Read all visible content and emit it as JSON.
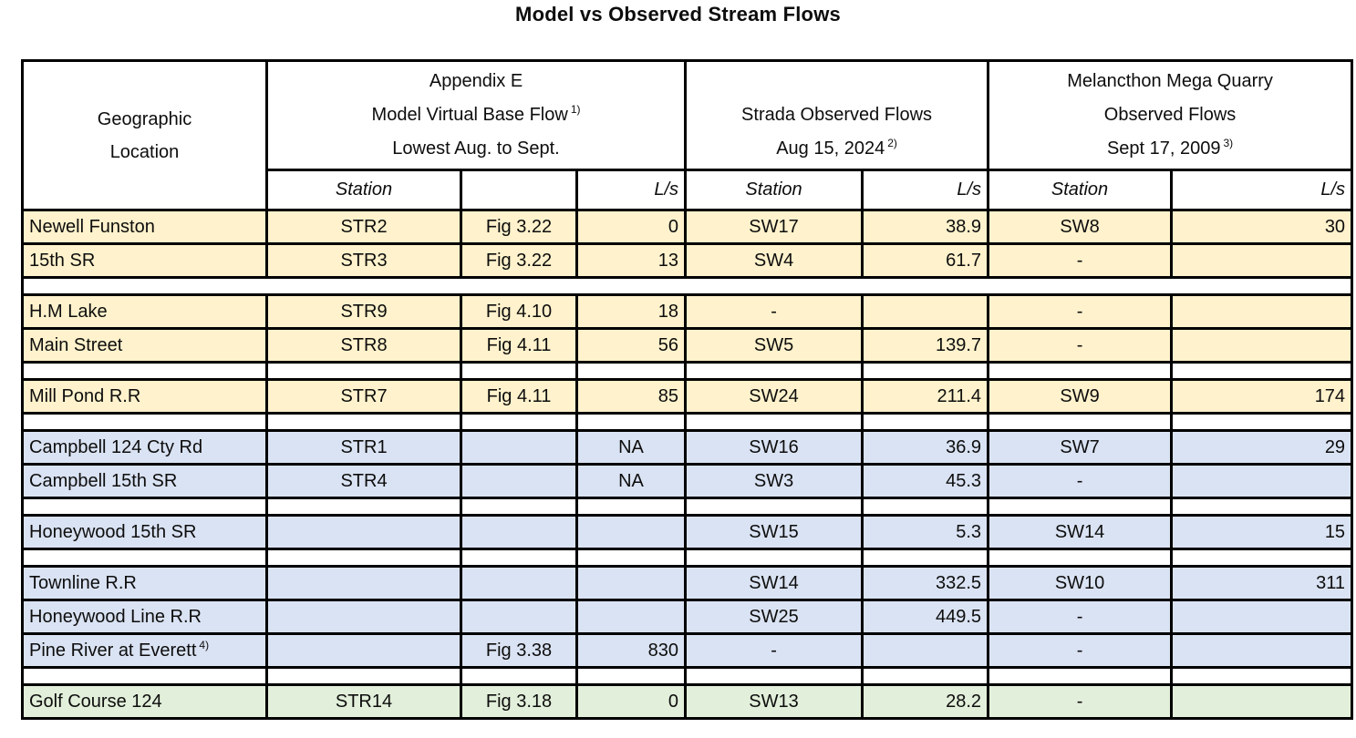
{
  "title": "Model vs Observed Stream Flows",
  "colors": {
    "row_yellow": "#FFF2CC",
    "row_blue": "#DAE3F3",
    "row_green": "#E2EFDA",
    "grid": "#000000"
  },
  "header": {
    "geographic": {
      "line1": "Geographic",
      "line2": "Location"
    },
    "appendix": {
      "line1": "Appendix E",
      "line2": "Model Virtual Base Flow",
      "line2_sup": "1)",
      "line3": "Lowest Aug. to Sept."
    },
    "strada": {
      "line1": "Strada Observed Flows",
      "line2": "Aug 15, 2024",
      "line2_sup": "2)"
    },
    "melancthon": {
      "line1": "Melancthon Mega Quarry",
      "line2": "Observed Flows",
      "line3": "Sept 17, 2009",
      "line3_sup": "3)"
    },
    "station_label": "Station",
    "unit_label": "L/s"
  },
  "rows": [
    {
      "type": "data",
      "color": "yellow",
      "location": "Newell Funston",
      "station1": "STR2",
      "figure": "Fig 3.22",
      "flow1": "0",
      "station2": "SW17",
      "flow2": "38.9",
      "station3": "SW8",
      "flow3": "30"
    },
    {
      "type": "data",
      "color": "yellow",
      "location": "15th SR",
      "station1": "STR3",
      "figure": "Fig 3.22",
      "flow1": "13",
      "station2": "SW4",
      "flow2": "61.7",
      "station3": "-",
      "flow3": ""
    },
    {
      "type": "spacer",
      "columns": false
    },
    {
      "type": "data",
      "color": "yellow",
      "location": "H.M Lake",
      "station1": "STR9",
      "figure": "Fig 4.10",
      "flow1": "18",
      "station2": "-",
      "flow2": "",
      "station3": "-",
      "flow3": ""
    },
    {
      "type": "data",
      "color": "yellow",
      "location": "Main Street",
      "station1": "STR8",
      "figure": "Fig 4.11",
      "flow1": "56",
      "station2": "SW5",
      "flow2": "139.7",
      "station3": "-",
      "flow3": ""
    },
    {
      "type": "spacer",
      "columns": true
    },
    {
      "type": "data",
      "color": "yellow",
      "location": "Mill Pond R.R",
      "station1": "STR7",
      "figure": "Fig 4.11",
      "flow1": "85",
      "station2": "SW24",
      "flow2": "211.4",
      "station3": "SW9",
      "flow3": "174"
    },
    {
      "type": "spacer",
      "columns": true
    },
    {
      "type": "data",
      "color": "blue",
      "location": "Campbell 124 Cty Rd",
      "station1": "STR1",
      "figure": "",
      "flow1": "NA",
      "station2": "SW16",
      "flow2": "36.9",
      "station3": "SW7",
      "flow3": "29"
    },
    {
      "type": "data",
      "color": "blue",
      "location": "Campbell 15th SR",
      "station1": "STR4",
      "figure": "",
      "flow1": "NA",
      "station2": "SW3",
      "flow2": "45.3",
      "station3": "-",
      "flow3": ""
    },
    {
      "type": "spacer",
      "columns": true
    },
    {
      "type": "data",
      "color": "blue",
      "location": "Honeywood 15th SR",
      "station1": "",
      "figure": "",
      "flow1": "",
      "station2": "SW15",
      "flow2": "5.3",
      "station3": "SW14",
      "flow3": "15"
    },
    {
      "type": "spacer",
      "columns": true
    },
    {
      "type": "data",
      "color": "blue",
      "location": "Townline R.R",
      "station1": "",
      "figure": "",
      "flow1": "",
      "station2": "SW14",
      "flow2": "332.5",
      "station3": "SW10",
      "flow3": "311"
    },
    {
      "type": "data",
      "color": "blue",
      "location": "Honeywood Line R.R",
      "station1": "",
      "figure": "",
      "flow1": "",
      "station2": "SW25",
      "flow2": "449.5",
      "station3": "-",
      "flow3": ""
    },
    {
      "type": "data",
      "color": "blue",
      "location": "Pine River at Everett",
      "location_sup": "4)",
      "station1": "",
      "figure": "Fig 3.38",
      "flow1": "830",
      "station2": "-",
      "flow2": "",
      "station3": "-",
      "flow3": ""
    },
    {
      "type": "spacer",
      "columns": true
    },
    {
      "type": "data",
      "color": "green",
      "location": "Golf Course 124",
      "station1": "STR14",
      "figure": "Fig 3.18",
      "flow1": "0",
      "station2": "SW13",
      "flow2": "28.2",
      "station3": "-",
      "flow3": ""
    }
  ]
}
